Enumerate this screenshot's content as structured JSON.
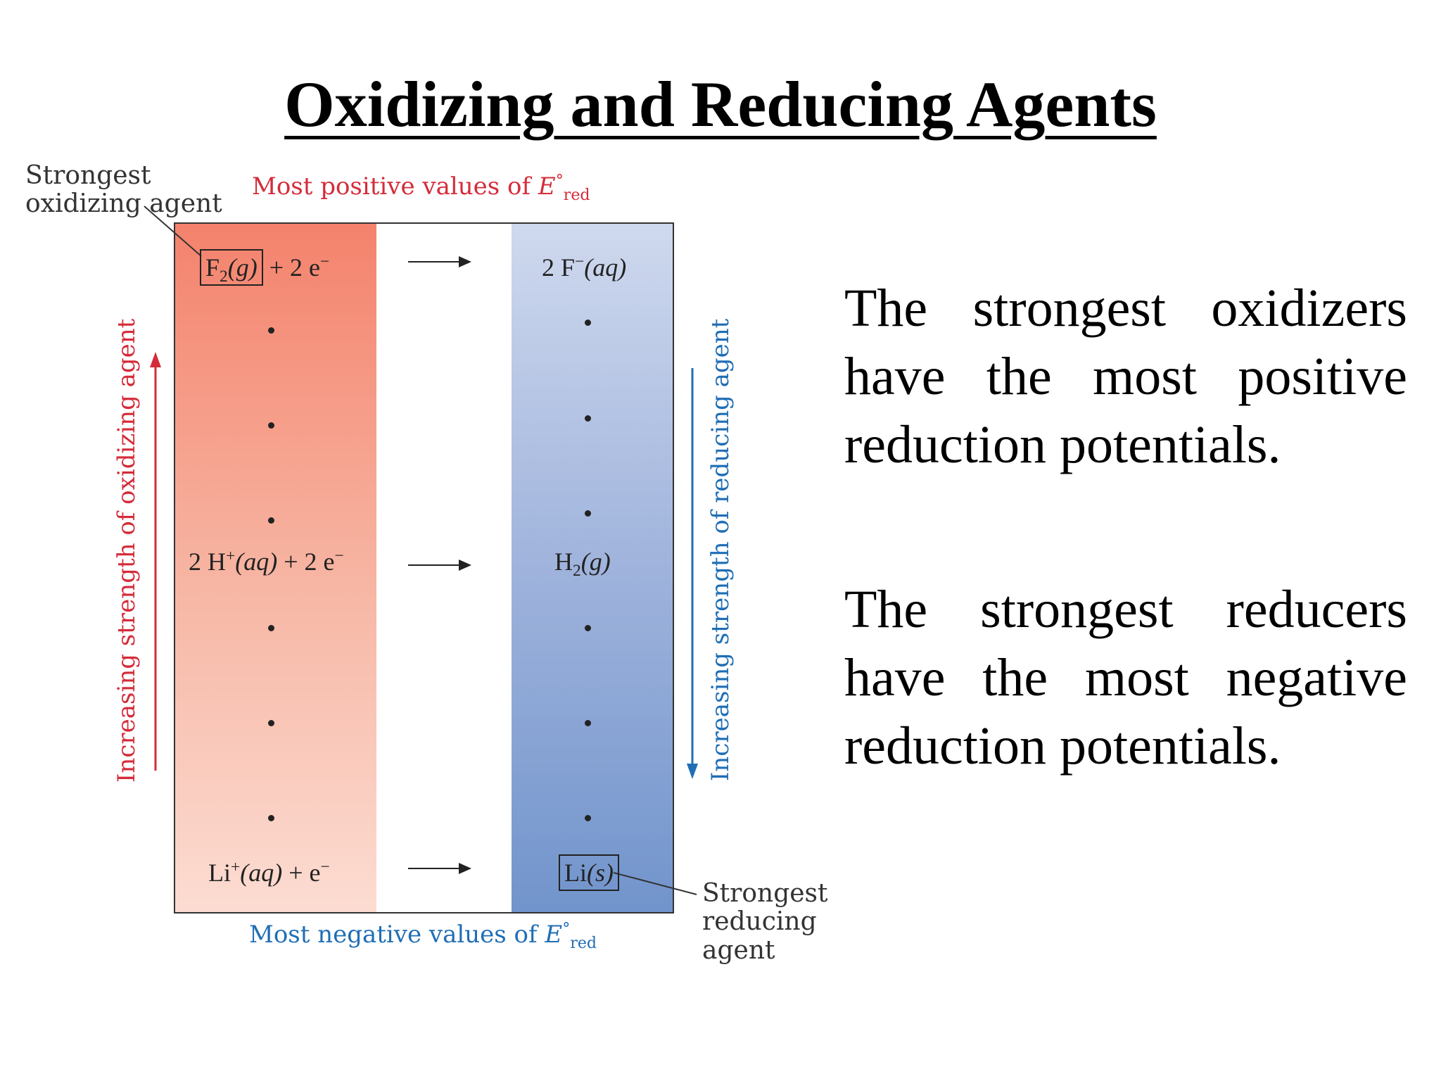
{
  "title": "Oxidizing and Reducing Agents",
  "diagram": {
    "top_label_prefix": "Most positive values of ",
    "bottom_label_prefix": "Most negative values of ",
    "e_symbol": "E",
    "e_superscript": "°",
    "e_subscript": "red",
    "strongest_oxidizing_label_line1": "Strongest",
    "strongest_oxidizing_label_line2": "oxidizing agent",
    "strongest_reducing_label_line1": "Strongest",
    "strongest_reducing_label_line2": "reducing",
    "strongest_reducing_label_line3": "agent",
    "left_axis_label": "Increasing strength of oxidizing agent",
    "right_axis_label": "Increasing strength of reducing agent",
    "row1": {
      "ox_species": "F",
      "ox_sub": "2",
      "ox_state": "(g)",
      "ox_rest": " + 2 e",
      "ox_rest_sup": "−",
      "red_coef": "2 F",
      "red_sup": "−",
      "red_state": "(aq)"
    },
    "row2": {
      "ox_coef": "2 H",
      "ox_sup": "+",
      "ox_state": "(aq)",
      "ox_rest": " + 2 e",
      "ox_rest_sup": "−",
      "red_species": "H",
      "red_sub": "2",
      "red_state": "(g)"
    },
    "row3": {
      "ox_coef": "Li",
      "ox_sup": "+",
      "ox_state": "(aq)",
      "ox_rest": " + e",
      "ox_rest_sup": "−",
      "red_species": "Li",
      "red_state": "(s)"
    },
    "colors": {
      "oxidizing": "#d42c3a",
      "reducing": "#1f6eb5"
    }
  },
  "text": {
    "paragraph1": "The strongest oxidizers have the most positive reduction potentials.",
    "paragraph2": "The strongest reducers have the most negative reduction potentials."
  }
}
